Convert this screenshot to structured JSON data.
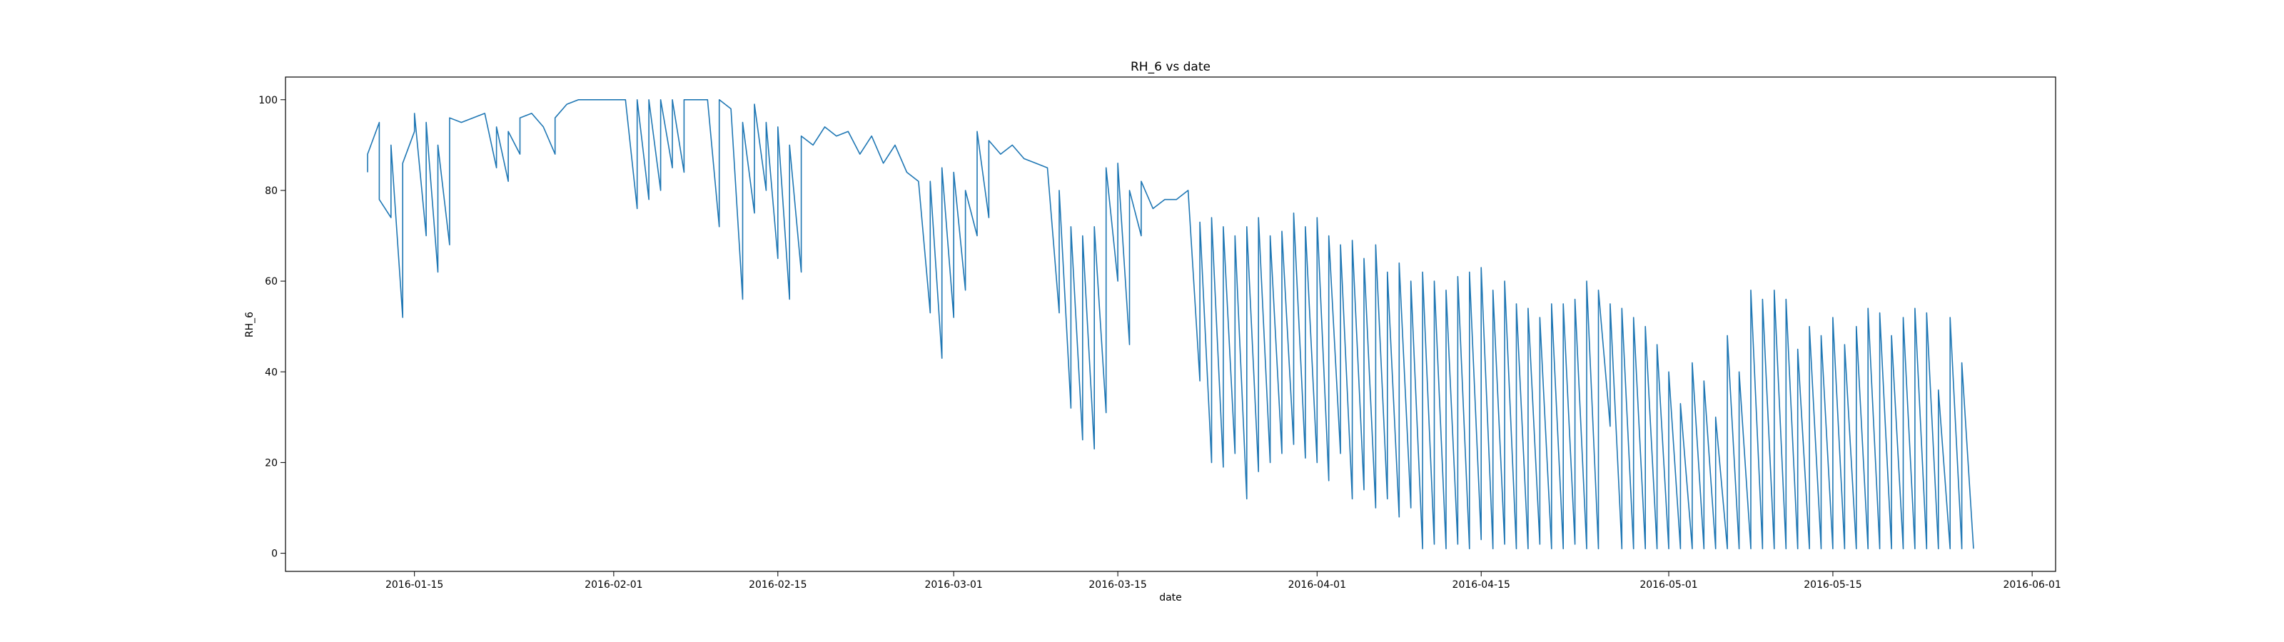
{
  "chart_data": {
    "type": "line",
    "title": "RH_6 vs date",
    "xlabel": "date",
    "ylabel": "RH_6",
    "xlim": [
      "2016-01-04",
      "2016-06-03"
    ],
    "ylim": [
      -4,
      105
    ],
    "x_ticks": [
      "2016-01-15",
      "2016-02-01",
      "2016-02-15",
      "2016-03-01",
      "2016-03-15",
      "2016-04-01",
      "2016-04-15",
      "2016-05-01",
      "2016-05-15",
      "2016-06-01"
    ],
    "y_ticks": [
      0,
      20,
      40,
      60,
      80,
      100
    ],
    "grid": false,
    "legend": "none",
    "series": [
      {
        "color": "#1f77b4",
        "points": [
          [
            "2016-01-11",
            84
          ],
          [
            "2016-01-11",
            88
          ],
          [
            "2016-01-12",
            95
          ],
          [
            "2016-01-12",
            78
          ],
          [
            "2016-01-13",
            74
          ],
          [
            "2016-01-13",
            90
          ],
          [
            "2016-01-14",
            52
          ],
          [
            "2016-01-14",
            86
          ],
          [
            "2016-01-15",
            93
          ],
          [
            "2016-01-15",
            97
          ],
          [
            "2016-01-16",
            70
          ],
          [
            "2016-01-16",
            95
          ],
          [
            "2016-01-17",
            62
          ],
          [
            "2016-01-17",
            90
          ],
          [
            "2016-01-18",
            68
          ],
          [
            "2016-01-18",
            96
          ],
          [
            "2016-01-19",
            95
          ],
          [
            "2016-01-20",
            96
          ],
          [
            "2016-01-21",
            97
          ],
          [
            "2016-01-22",
            85
          ],
          [
            "2016-01-22",
            94
          ],
          [
            "2016-01-23",
            82
          ],
          [
            "2016-01-23",
            93
          ],
          [
            "2016-01-24",
            88
          ],
          [
            "2016-01-24",
            96
          ],
          [
            "2016-01-25",
            97
          ],
          [
            "2016-01-26",
            94
          ],
          [
            "2016-01-27",
            88
          ],
          [
            "2016-01-27",
            96
          ],
          [
            "2016-01-28",
            99
          ],
          [
            "2016-01-29",
            100
          ],
          [
            "2016-01-30",
            100
          ],
          [
            "2016-01-31",
            100
          ],
          [
            "2016-02-01",
            100
          ],
          [
            "2016-02-02",
            100
          ],
          [
            "2016-02-03",
            76
          ],
          [
            "2016-02-03",
            100
          ],
          [
            "2016-02-04",
            78
          ],
          [
            "2016-02-04",
            100
          ],
          [
            "2016-02-05",
            80
          ],
          [
            "2016-02-05",
            100
          ],
          [
            "2016-02-06",
            85
          ],
          [
            "2016-02-06",
            100
          ],
          [
            "2016-02-07",
            84
          ],
          [
            "2016-02-07",
            100
          ],
          [
            "2016-02-08",
            100
          ],
          [
            "2016-02-09",
            100
          ],
          [
            "2016-02-10",
            72
          ],
          [
            "2016-02-10",
            100
          ],
          [
            "2016-02-11",
            98
          ],
          [
            "2016-02-12",
            56
          ],
          [
            "2016-02-12",
            95
          ],
          [
            "2016-02-13",
            75
          ],
          [
            "2016-02-13",
            99
          ],
          [
            "2016-02-14",
            80
          ],
          [
            "2016-02-14",
            95
          ],
          [
            "2016-02-15",
            65
          ],
          [
            "2016-02-15",
            94
          ],
          [
            "2016-02-16",
            56
          ],
          [
            "2016-02-16",
            90
          ],
          [
            "2016-02-17",
            62
          ],
          [
            "2016-02-17",
            92
          ],
          [
            "2016-02-18",
            90
          ],
          [
            "2016-02-19",
            94
          ],
          [
            "2016-02-20",
            92
          ],
          [
            "2016-02-21",
            93
          ],
          [
            "2016-02-22",
            88
          ],
          [
            "2016-02-23",
            92
          ],
          [
            "2016-02-24",
            86
          ],
          [
            "2016-02-25",
            90
          ],
          [
            "2016-02-26",
            84
          ],
          [
            "2016-02-27",
            82
          ],
          [
            "2016-02-28",
            53
          ],
          [
            "2016-02-28",
            82
          ],
          [
            "2016-02-29",
            43
          ],
          [
            "2016-02-29",
            85
          ],
          [
            "2016-03-01",
            52
          ],
          [
            "2016-03-01",
            84
          ],
          [
            "2016-03-02",
            58
          ],
          [
            "2016-03-02",
            80
          ],
          [
            "2016-03-03",
            70
          ],
          [
            "2016-03-03",
            93
          ],
          [
            "2016-03-04",
            74
          ],
          [
            "2016-03-04",
            91
          ],
          [
            "2016-03-05",
            88
          ],
          [
            "2016-03-06",
            90
          ],
          [
            "2016-03-07",
            87
          ],
          [
            "2016-03-08",
            86
          ],
          [
            "2016-03-09",
            85
          ],
          [
            "2016-03-10",
            53
          ],
          [
            "2016-03-10",
            80
          ],
          [
            "2016-03-11",
            32
          ],
          [
            "2016-03-11",
            72
          ],
          [
            "2016-03-12",
            25
          ],
          [
            "2016-03-12",
            70
          ],
          [
            "2016-03-13",
            23
          ],
          [
            "2016-03-13",
            72
          ],
          [
            "2016-03-14",
            31
          ],
          [
            "2016-03-14",
            85
          ],
          [
            "2016-03-15",
            60
          ],
          [
            "2016-03-15",
            86
          ],
          [
            "2016-03-16",
            46
          ],
          [
            "2016-03-16",
            80
          ],
          [
            "2016-03-17",
            70
          ],
          [
            "2016-03-17",
            82
          ],
          [
            "2016-03-18",
            76
          ],
          [
            "2016-03-19",
            78
          ],
          [
            "2016-03-20",
            78
          ],
          [
            "2016-03-21",
            80
          ],
          [
            "2016-03-22",
            38
          ],
          [
            "2016-03-22",
            73
          ],
          [
            "2016-03-23",
            20
          ],
          [
            "2016-03-23",
            74
          ],
          [
            "2016-03-24",
            19
          ],
          [
            "2016-03-24",
            72
          ],
          [
            "2016-03-25",
            22
          ],
          [
            "2016-03-25",
            70
          ],
          [
            "2016-03-26",
            12
          ],
          [
            "2016-03-26",
            72
          ],
          [
            "2016-03-27",
            18
          ],
          [
            "2016-03-27",
            74
          ],
          [
            "2016-03-28",
            20
          ],
          [
            "2016-03-28",
            70
          ],
          [
            "2016-03-29",
            22
          ],
          [
            "2016-03-29",
            71
          ],
          [
            "2016-03-30",
            24
          ],
          [
            "2016-03-30",
            75
          ],
          [
            "2016-03-31",
            21
          ],
          [
            "2016-03-31",
            72
          ],
          [
            "2016-04-01",
            20
          ],
          [
            "2016-04-01",
            74
          ],
          [
            "2016-04-02",
            16
          ],
          [
            "2016-04-02",
            70
          ],
          [
            "2016-04-03",
            22
          ],
          [
            "2016-04-03",
            68
          ],
          [
            "2016-04-04",
            12
          ],
          [
            "2016-04-04",
            69
          ],
          [
            "2016-04-05",
            14
          ],
          [
            "2016-04-05",
            65
          ],
          [
            "2016-04-06",
            10
          ],
          [
            "2016-04-06",
            68
          ],
          [
            "2016-04-07",
            12
          ],
          [
            "2016-04-07",
            62
          ],
          [
            "2016-04-08",
            8
          ],
          [
            "2016-04-08",
            64
          ],
          [
            "2016-04-09",
            10
          ],
          [
            "2016-04-09",
            60
          ],
          [
            "2016-04-10",
            1
          ],
          [
            "2016-04-10",
            62
          ],
          [
            "2016-04-11",
            2
          ],
          [
            "2016-04-11",
            60
          ],
          [
            "2016-04-12",
            1
          ],
          [
            "2016-04-12",
            58
          ],
          [
            "2016-04-13",
            2
          ],
          [
            "2016-04-13",
            61
          ],
          [
            "2016-04-14",
            1
          ],
          [
            "2016-04-14",
            62
          ],
          [
            "2016-04-15",
            3
          ],
          [
            "2016-04-15",
            63
          ],
          [
            "2016-04-16",
            1
          ],
          [
            "2016-04-16",
            58
          ],
          [
            "2016-04-17",
            2
          ],
          [
            "2016-04-17",
            60
          ],
          [
            "2016-04-18",
            1
          ],
          [
            "2016-04-18",
            55
          ],
          [
            "2016-04-19",
            1
          ],
          [
            "2016-04-19",
            54
          ],
          [
            "2016-04-20",
            2
          ],
          [
            "2016-04-20",
            52
          ],
          [
            "2016-04-21",
            1
          ],
          [
            "2016-04-21",
            55
          ],
          [
            "2016-04-22",
            1
          ],
          [
            "2016-04-22",
            55
          ],
          [
            "2016-04-23",
            2
          ],
          [
            "2016-04-23",
            56
          ],
          [
            "2016-04-24",
            1
          ],
          [
            "2016-04-24",
            60
          ],
          [
            "2016-04-25",
            1
          ],
          [
            "2016-04-25",
            58
          ],
          [
            "2016-04-26",
            28
          ],
          [
            "2016-04-26",
            55
          ],
          [
            "2016-04-27",
            1
          ],
          [
            "2016-04-27",
            54
          ],
          [
            "2016-04-28",
            1
          ],
          [
            "2016-04-28",
            52
          ],
          [
            "2016-04-29",
            1
          ],
          [
            "2016-04-29",
            50
          ],
          [
            "2016-04-30",
            1
          ],
          [
            "2016-04-30",
            46
          ],
          [
            "2016-05-01",
            1
          ],
          [
            "2016-05-01",
            40
          ],
          [
            "2016-05-02",
            1
          ],
          [
            "2016-05-02",
            33
          ],
          [
            "2016-05-03",
            1
          ],
          [
            "2016-05-03",
            42
          ],
          [
            "2016-05-04",
            1
          ],
          [
            "2016-05-04",
            38
          ],
          [
            "2016-05-05",
            1
          ],
          [
            "2016-05-05",
            30
          ],
          [
            "2016-05-06",
            1
          ],
          [
            "2016-05-06",
            48
          ],
          [
            "2016-05-07",
            1
          ],
          [
            "2016-05-07",
            40
          ],
          [
            "2016-05-08",
            1
          ],
          [
            "2016-05-08",
            58
          ],
          [
            "2016-05-09",
            1
          ],
          [
            "2016-05-09",
            56
          ],
          [
            "2016-05-10",
            1
          ],
          [
            "2016-05-10",
            58
          ],
          [
            "2016-05-11",
            1
          ],
          [
            "2016-05-11",
            56
          ],
          [
            "2016-05-12",
            1
          ],
          [
            "2016-05-12",
            45
          ],
          [
            "2016-05-13",
            1
          ],
          [
            "2016-05-13",
            50
          ],
          [
            "2016-05-14",
            1
          ],
          [
            "2016-05-14",
            48
          ],
          [
            "2016-05-15",
            1
          ],
          [
            "2016-05-15",
            52
          ],
          [
            "2016-05-16",
            1
          ],
          [
            "2016-05-16",
            46
          ],
          [
            "2016-05-17",
            1
          ],
          [
            "2016-05-17",
            50
          ],
          [
            "2016-05-18",
            1
          ],
          [
            "2016-05-18",
            54
          ],
          [
            "2016-05-19",
            1
          ],
          [
            "2016-05-19",
            53
          ],
          [
            "2016-05-20",
            1
          ],
          [
            "2016-05-20",
            48
          ],
          [
            "2016-05-21",
            1
          ],
          [
            "2016-05-21",
            52
          ],
          [
            "2016-05-22",
            1
          ],
          [
            "2016-05-22",
            54
          ],
          [
            "2016-05-23",
            1
          ],
          [
            "2016-05-23",
            53
          ],
          [
            "2016-05-24",
            1
          ],
          [
            "2016-05-24",
            36
          ],
          [
            "2016-05-25",
            1
          ],
          [
            "2016-05-25",
            52
          ],
          [
            "2016-05-26",
            1
          ],
          [
            "2016-05-26",
            42
          ],
          [
            "2016-05-27",
            1
          ],
          [
            "2016-05-27",
            1
          ]
        ]
      }
    ]
  }
}
